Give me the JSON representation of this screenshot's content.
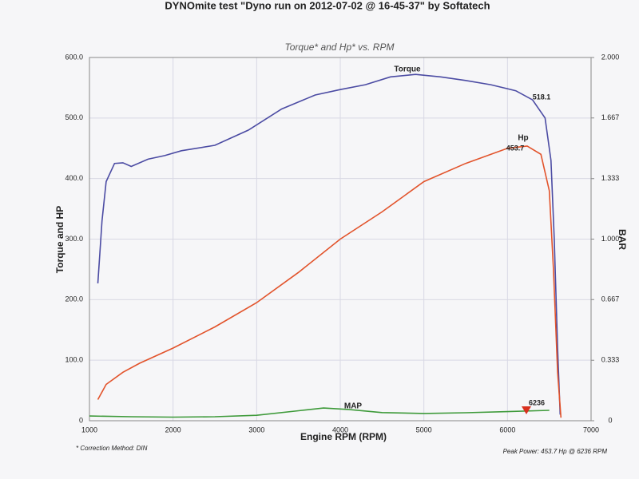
{
  "chart_data": {
    "type": "line",
    "title": "DYNOmite test \"Dyno run on 2012-07-02 @ 16-45-37\" by Softatech",
    "subtitle": "Torque* and Hp* vs. RPM",
    "x_label": "Engine RPM (RPM)",
    "y_label": "Torque and HP",
    "y2_label": "BAR",
    "notes": [
      "* Correction Method: DIN",
      "Peak Power: 453.7 Hp @ 6236 RPM"
    ],
    "annotations": [
      "518.1",
      "453.7",
      "6236"
    ],
    "xlim": [
      1000,
      7000
    ],
    "xticks": [
      1000,
      2000,
      3000,
      4000,
      5000,
      6000,
      7000
    ],
    "ylim": [
      0,
      600
    ],
    "yticks": [
      0,
      {
        "value": 100,
        "label": "100.0"
      },
      {
        "value": 200,
        "label": "200.0"
      },
      {
        "value": 300,
        "label": "300.0"
      },
      {
        "value": 400,
        "label": "400.0"
      },
      {
        "value": 500,
        "label": "500.0"
      },
      {
        "value": 600,
        "label": "600.0"
      }
    ],
    "y2lim": [
      0,
      2
    ],
    "y2ticks": [
      0,
      0.333,
      0.667,
      {
        "value": 1,
        "label": "1.000"
      },
      1.333,
      1.667,
      {
        "value": 2,
        "label": "2.000"
      }
    ],
    "grid": true,
    "series": [
      {
        "name": "Torque",
        "color": "#4b4ba3",
        "x": [
          1100,
          1150,
          1200,
          1300,
          1400,
          1500,
          1700,
          1900,
          2100,
          2500,
          2900,
          3300,
          3700,
          4000,
          4300,
          4600,
          4900,
          5200,
          5500,
          5800,
          6100,
          6300,
          6450,
          6520,
          6560,
          6600,
          6630
        ],
        "values": [
          227,
          330,
          395,
          425,
          426,
          420,
          432,
          438,
          446,
          455,
          480,
          515,
          538,
          547,
          555,
          568,
          572,
          568,
          562,
          555,
          545,
          530,
          500,
          430,
          300,
          120,
          10
        ]
      },
      {
        "name": "Hp",
        "color": "#e2532b",
        "x": [
          1100,
          1200,
          1400,
          1600,
          2000,
          2500,
          3000,
          3500,
          4000,
          4500,
          5000,
          5500,
          6000,
          6236,
          6400,
          6500,
          6550,
          6600,
          6640
        ],
        "values": [
          35,
          60,
          80,
          95,
          120,
          155,
          195,
          245,
          300,
          345,
          395,
          425,
          450,
          453.7,
          440,
          380,
          250,
          80,
          5
        ]
      },
      {
        "name": "MAP",
        "color": "#3e9a3a",
        "axis": "y2",
        "x": [
          1000,
          1500,
          2000,
          2500,
          3000,
          3500,
          3800,
          4100,
          4500,
          5000,
          5500,
          6000,
          6500
        ],
        "values": [
          0.026,
          0.022,
          0.02,
          0.022,
          0.03,
          0.055,
          0.07,
          0.062,
          0.045,
          0.04,
          0.044,
          0.05,
          0.057
        ]
      }
    ]
  }
}
